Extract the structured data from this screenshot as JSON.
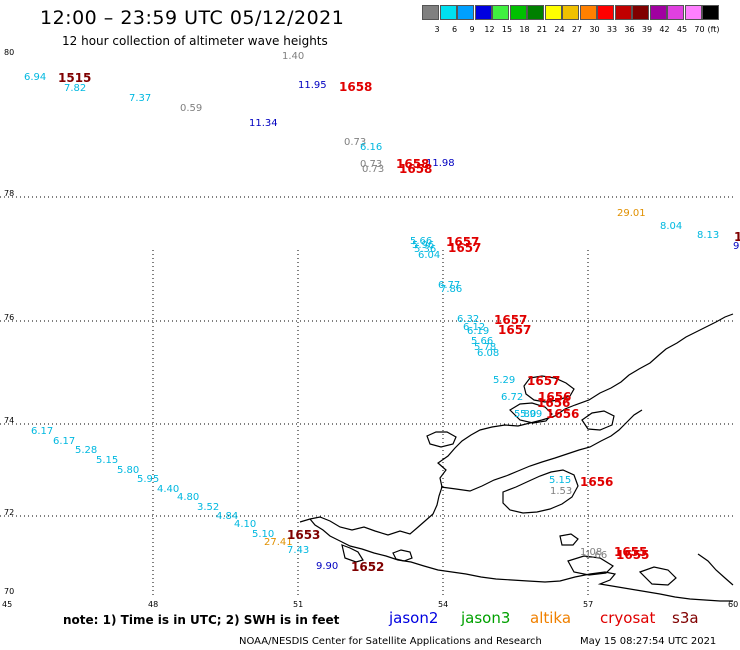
{
  "header": {
    "title": "12:00 – 23:59 UTC 05/12/2021",
    "subtitle": "12 hour collection of altimeter wave heights"
  },
  "legend": {
    "unit": "(ft)",
    "bins": [
      {
        "label": "3",
        "color": "#808080"
      },
      {
        "label": "6",
        "color": "#00e0f0"
      },
      {
        "label": "9",
        "color": "#00a0ff"
      },
      {
        "label": "12",
        "color": "#0000e0"
      },
      {
        "label": "15",
        "color": "#40f040"
      },
      {
        "label": "18",
        "color": "#00c000"
      },
      {
        "label": "21",
        "color": "#008000"
      },
      {
        "label": "24",
        "color": "#ffff00"
      },
      {
        "label": "27",
        "color": "#f0c000"
      },
      {
        "label": "30",
        "color": "#ff8000"
      },
      {
        "label": "33",
        "color": "#ff0000"
      },
      {
        "label": "36",
        "color": "#c00000"
      },
      {
        "label": "39",
        "color": "#800000"
      },
      {
        "label": "42",
        "color": "#a000a0"
      },
      {
        "label": "45",
        "color": "#e040e0"
      },
      {
        "label": "70",
        "color": "#ff80ff"
      },
      {
        "label": "",
        "color": "#000000"
      }
    ]
  },
  "axes": {
    "lat_labels": [
      "80",
      "78",
      "76",
      "74",
      "72",
      "70"
    ],
    "lon_labels": [
      "45",
      "48",
      "51",
      "54",
      "57",
      "60"
    ]
  },
  "colors": {
    "jason2": "#0000e0",
    "jason3": "#00a000",
    "altika": "#f08000",
    "cryosat": "#e00000",
    "s3a": "#800000",
    "swh_low": "#808080",
    "swh_cyan": "#00b8e0",
    "swh_blue": "#0000c0",
    "swh_orange": "#e09000"
  },
  "observations": [
    {
      "text": "6.94",
      "color": "#00b8e0"
    },
    {
      "text": "7.82",
      "color": "#00b8e0"
    },
    {
      "text": "7.37",
      "color": "#00b8e0"
    },
    {
      "text": "0.59",
      "color": "#808080"
    },
    {
      "text": "1.40",
      "color": "#808080"
    },
    {
      "text": "11.95",
      "color": "#0000c0"
    },
    {
      "text": "11.34",
      "color": "#0000c0"
    },
    {
      "text": "0.73",
      "color": "#808080"
    },
    {
      "text": "6.16",
      "color": "#00b8e0"
    },
    {
      "text": "0.73",
      "color": "#808080"
    },
    {
      "text": "0.73",
      "color": "#808080"
    },
    {
      "text": "11.98",
      "color": "#0000c0"
    },
    {
      "text": "29.01",
      "color": "#e09000"
    },
    {
      "text": "8.04",
      "color": "#00b8e0"
    },
    {
      "text": "8.13",
      "color": "#00b8e0"
    },
    {
      "text": "9",
      "color": "#0000c0"
    },
    {
      "text": "5.66",
      "color": "#00b8e0"
    },
    {
      "text": "5.96",
      "color": "#00b8e0"
    },
    {
      "text": "5.36",
      "color": "#00b8e0"
    },
    {
      "text": "6.04",
      "color": "#00b8e0"
    },
    {
      "text": "6.77",
      "color": "#00b8e0"
    },
    {
      "text": "7.86",
      "color": "#00b8e0"
    },
    {
      "text": "6.32",
      "color": "#00b8e0"
    },
    {
      "text": "6.12",
      "color": "#00b8e0"
    },
    {
      "text": "6.19",
      "color": "#00b8e0"
    },
    {
      "text": "5.66",
      "color": "#00b8e0"
    },
    {
      "text": "5.78",
      "color": "#00b8e0"
    },
    {
      "text": "6.08",
      "color": "#00b8e0"
    },
    {
      "text": "5.29",
      "color": "#00b8e0"
    },
    {
      "text": "6.72",
      "color": "#00b8e0"
    },
    {
      "text": "5.80",
      "color": "#00b8e0"
    },
    {
      "text": "5.99",
      "color": "#00b8e0"
    },
    {
      "text": "6.17",
      "color": "#00b8e0"
    },
    {
      "text": "6.17",
      "color": "#00b8e0"
    },
    {
      "text": "5.28",
      "color": "#00b8e0"
    },
    {
      "text": "5.15",
      "color": "#00b8e0"
    },
    {
      "text": "5.80",
      "color": "#00b8e0"
    },
    {
      "text": "5.95",
      "color": "#00b8e0"
    },
    {
      "text": "4.40",
      "color": "#00b8e0"
    },
    {
      "text": "4.80",
      "color": "#00b8e0"
    },
    {
      "text": "3.52",
      "color": "#00b8e0"
    },
    {
      "text": "4.84",
      "color": "#00b8e0"
    },
    {
      "text": "4.10",
      "color": "#00b8e0"
    },
    {
      "text": "5.10",
      "color": "#00b8e0"
    },
    {
      "text": "27.41",
      "color": "#e09000"
    },
    {
      "text": "7.43",
      "color": "#00b8e0"
    },
    {
      "text": "9.90",
      "color": "#0000c0"
    },
    {
      "text": "5.15",
      "color": "#00b8e0"
    },
    {
      "text": "1.53",
      "color": "#808080"
    },
    {
      "text": "1.08",
      "color": "#808080"
    },
    {
      "text": "1.66",
      "color": "#808080"
    }
  ],
  "pass_times": [
    {
      "text": "1515",
      "color": "#800000"
    },
    {
      "text": "1658",
      "color": "#e00000"
    },
    {
      "text": "1658",
      "color": "#e00000"
    },
    {
      "text": "1658",
      "color": "#e00000"
    },
    {
      "text": "1",
      "color": "#800000"
    },
    {
      "text": "1657",
      "color": "#e00000"
    },
    {
      "text": "1657",
      "color": "#e00000"
    },
    {
      "text": "1657",
      "color": "#e00000"
    },
    {
      "text": "1657",
      "color": "#e00000"
    },
    {
      "text": "1657",
      "color": "#e00000"
    },
    {
      "text": "1656",
      "color": "#e00000"
    },
    {
      "text": "1656",
      "color": "#e00000"
    },
    {
      "text": "1656",
      "color": "#e00000"
    },
    {
      "text": "1656",
      "color": "#e00000"
    },
    {
      "text": "1653",
      "color": "#800000"
    },
    {
      "text": "1652",
      "color": "#800000"
    },
    {
      "text": "1655",
      "color": "#e00000"
    },
    {
      "text": "1655",
      "color": "#e00000"
    }
  ],
  "footer": {
    "note": "note:  1) Time is in UTC; 2) SWH is in feet",
    "satellites": [
      {
        "label": "jason2",
        "color": "#0000e0"
      },
      {
        "label": "jason3",
        "color": "#00a000"
      },
      {
        "label": "altika",
        "color": "#f08000"
      },
      {
        "label": "cryosat",
        "color": "#e00000"
      },
      {
        "label": "s3a",
        "color": "#800000"
      }
    ],
    "credit": "NOAA/NESDIS Center for Satellite Applications and Research",
    "timestamp": "May 15 08:27:54 UTC 2021"
  }
}
